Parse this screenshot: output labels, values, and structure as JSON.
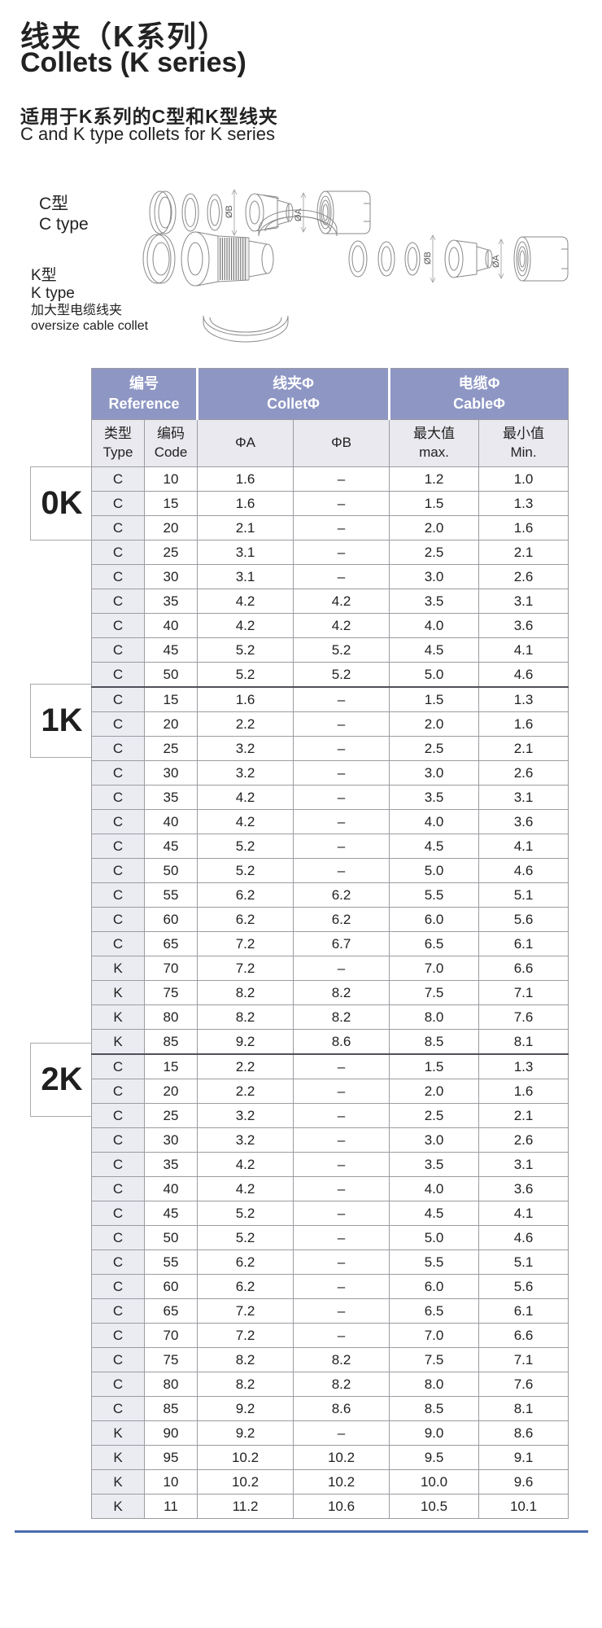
{
  "page": {
    "title_zh": "线夹（K系列）",
    "title_en": "Collets (K series)",
    "subtitle_zh": "适用于K系列的C型和K型线夹",
    "subtitle_en": "C and K type collets for K series"
  },
  "diagrams": {
    "c_type": {
      "label_zh": "C型",
      "label_en": "C type",
      "dim_a": "ØA",
      "dim_b": "ØB"
    },
    "k_type": {
      "label_zh": "K型",
      "label_en": "K type",
      "desc_zh": "加大型电缆线夹",
      "desc_en": "oversize cable collet",
      "dim_a": "ØA",
      "dim_b": "ØB"
    }
  },
  "table": {
    "groups": [
      {
        "zh": "编号",
        "en": "Reference"
      },
      {
        "zh": "线夹Φ",
        "en": "ColletΦ"
      },
      {
        "zh": "电缆Φ",
        "en": "CableΦ"
      }
    ],
    "columns": {
      "type": {
        "zh": "类型",
        "en": "Type"
      },
      "code": {
        "zh": "编码",
        "en": "Code"
      },
      "phi_a": "ΦA",
      "phi_b": "ΦB",
      "max": {
        "zh": "最大值",
        "en": "max."
      },
      "min": {
        "zh": "最小值",
        "en": "Min."
      }
    },
    "sections": [
      {
        "series": "0K",
        "rows": [
          [
            "C",
            "10",
            "1.6",
            "–",
            "1.2",
            "1.0"
          ],
          [
            "C",
            "15",
            "1.6",
            "–",
            "1.5",
            "1.3"
          ],
          [
            "C",
            "20",
            "2.1",
            "–",
            "2.0",
            "1.6"
          ],
          [
            "C",
            "25",
            "3.1",
            "–",
            "2.5",
            "2.1"
          ],
          [
            "C",
            "30",
            "3.1",
            "–",
            "3.0",
            "2.6"
          ],
          [
            "C",
            "35",
            "4.2",
            "4.2",
            "3.5",
            "3.1"
          ],
          [
            "C",
            "40",
            "4.2",
            "4.2",
            "4.0",
            "3.6"
          ],
          [
            "C",
            "45",
            "5.2",
            "5.2",
            "4.5",
            "4.1"
          ],
          [
            "C",
            "50",
            "5.2",
            "5.2",
            "5.0",
            "4.6"
          ]
        ]
      },
      {
        "series": "1K",
        "rows": [
          [
            "C",
            "15",
            "1.6",
            "–",
            "1.5",
            "1.3"
          ],
          [
            "C",
            "20",
            "2.2",
            "–",
            "2.0",
            "1.6"
          ],
          [
            "C",
            "25",
            "3.2",
            "–",
            "2.5",
            "2.1"
          ],
          [
            "C",
            "30",
            "3.2",
            "–",
            "3.0",
            "2.6"
          ],
          [
            "C",
            "35",
            "4.2",
            "–",
            "3.5",
            "3.1"
          ],
          [
            "C",
            "40",
            "4.2",
            "–",
            "4.0",
            "3.6"
          ],
          [
            "C",
            "45",
            "5.2",
            "–",
            "4.5",
            "4.1"
          ],
          [
            "C",
            "50",
            "5.2",
            "–",
            "5.0",
            "4.6"
          ],
          [
            "C",
            "55",
            "6.2",
            "6.2",
            "5.5",
            "5.1"
          ],
          [
            "C",
            "60",
            "6.2",
            "6.2",
            "6.0",
            "5.6"
          ],
          [
            "C",
            "65",
            "7.2",
            "6.7",
            "6.5",
            "6.1"
          ],
          [
            "K",
            "70",
            "7.2",
            "–",
            "7.0",
            "6.6"
          ],
          [
            "K",
            "75",
            "8.2",
            "8.2",
            "7.5",
            "7.1"
          ],
          [
            "K",
            "80",
            "8.2",
            "8.2",
            "8.0",
            "7.6"
          ],
          [
            "K",
            "85",
            "9.2",
            "8.6",
            "8.5",
            "8.1"
          ]
        ]
      },
      {
        "series": "2K",
        "rows": [
          [
            "C",
            "15",
            "2.2",
            "–",
            "1.5",
            "1.3"
          ],
          [
            "C",
            "20",
            "2.2",
            "–",
            "2.0",
            "1.6"
          ],
          [
            "C",
            "25",
            "3.2",
            "–",
            "2.5",
            "2.1"
          ],
          [
            "C",
            "30",
            "3.2",
            "–",
            "3.0",
            "2.6"
          ],
          [
            "C",
            "35",
            "4.2",
            "–",
            "3.5",
            "3.1"
          ],
          [
            "C",
            "40",
            "4.2",
            "–",
            "4.0",
            "3.6"
          ],
          [
            "C",
            "45",
            "5.2",
            "–",
            "4.5",
            "4.1"
          ],
          [
            "C",
            "50",
            "5.2",
            "–",
            "5.0",
            "4.6"
          ],
          [
            "C",
            "55",
            "6.2",
            "–",
            "5.5",
            "5.1"
          ],
          [
            "C",
            "60",
            "6.2",
            "–",
            "6.0",
            "5.6"
          ],
          [
            "C",
            "65",
            "7.2",
            "–",
            "6.5",
            "6.1"
          ],
          [
            "C",
            "70",
            "7.2",
            "–",
            "7.0",
            "6.6"
          ],
          [
            "C",
            "75",
            "8.2",
            "8.2",
            "7.5",
            "7.1"
          ],
          [
            "C",
            "80",
            "8.2",
            "8.2",
            "8.0",
            "7.6"
          ],
          [
            "C",
            "85",
            "9.2",
            "8.6",
            "8.5",
            "8.1"
          ],
          [
            "K",
            "90",
            "9.2",
            "–",
            "9.0",
            "8.6"
          ],
          [
            "K",
            "95",
            "10.2",
            "10.2",
            "9.5",
            "9.1"
          ],
          [
            "K",
            "10",
            "10.2",
            "10.2",
            "10.0",
            "9.6"
          ],
          [
            "K",
            "11",
            "11.2",
            "10.6",
            "10.5",
            "10.1"
          ]
        ]
      }
    ]
  }
}
